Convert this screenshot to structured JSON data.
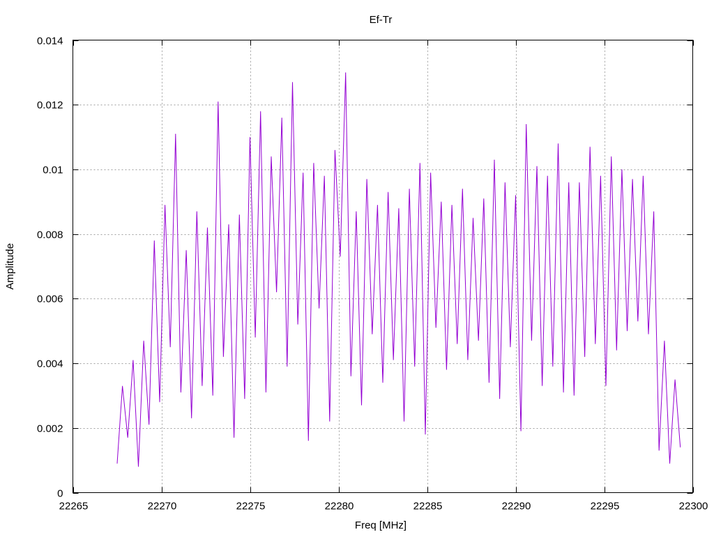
{
  "chart_data": {
    "type": "line",
    "title": "Ef-Tr",
    "xlabel": "Freq [MHz]",
    "ylabel": "Amplitude",
    "xlim": [
      22265,
      22300
    ],
    "ylim": [
      0,
      0.014
    ],
    "xticks": [
      22265,
      22270,
      22275,
      22280,
      22285,
      22290,
      22295,
      22300
    ],
    "xtick_labels": [
      "22265",
      "22270",
      "22275",
      "22280",
      "22285",
      "22290",
      "22295",
      "22300"
    ],
    "yticks": [
      0,
      0.002,
      0.004,
      0.006,
      0.008,
      0.01,
      0.012,
      0.014
    ],
    "ytick_labels": [
      "0",
      "0.002",
      "0.004",
      "0.006",
      "0.008",
      "0.01",
      "0.012",
      "0.014"
    ],
    "grid": true,
    "legend": "none",
    "series": [
      {
        "color": "#9400d3",
        "x": [
          22267.5,
          22267.8,
          22268.1,
          22268.4,
          22268.7,
          22269.0,
          22269.3,
          22269.6,
          22269.9,
          22270.2,
          22270.5,
          22270.8,
          22271.1,
          22271.4,
          22271.7,
          22272.0,
          22272.3,
          22272.6,
          22272.9,
          22273.2,
          22273.5,
          22273.8,
          22274.1,
          22274.4,
          22274.7,
          22275.0,
          22275.3,
          22275.6,
          22275.9,
          22276.2,
          22276.5,
          22276.8,
          22277.1,
          22277.4,
          22277.7,
          22278.0,
          22278.3,
          22278.6,
          22278.9,
          22279.2,
          22279.5,
          22279.8,
          22280.1,
          22280.4,
          22280.7,
          22281.0,
          22281.3,
          22281.6,
          22281.9,
          22282.2,
          22282.5,
          22282.8,
          22283.1,
          22283.4,
          22283.7,
          22284.0,
          22284.3,
          22284.6,
          22284.9,
          22285.2,
          22285.5,
          22285.8,
          22286.1,
          22286.4,
          22286.7,
          22287.0,
          22287.3,
          22287.6,
          22287.9,
          22288.2,
          22288.5,
          22288.8,
          22289.1,
          22289.4,
          22289.7,
          22290.0,
          22290.3,
          22290.6,
          22290.9,
          22291.2,
          22291.5,
          22291.8,
          22292.1,
          22292.4,
          22292.7,
          22293.0,
          22293.3,
          22293.6,
          22293.9,
          22294.2,
          22294.5,
          22294.8,
          22295.1,
          22295.4,
          22295.7,
          22296.0,
          22296.3,
          22296.6,
          22296.9,
          22297.2,
          22297.5,
          22297.8,
          22298.1,
          22298.4,
          22298.7,
          22299.0,
          22299.3
        ],
        "y": [
          0.0009,
          0.0033,
          0.0017,
          0.0041,
          0.0008,
          0.0047,
          0.0021,
          0.0078,
          0.0028,
          0.0089,
          0.0045,
          0.0111,
          0.0031,
          0.0075,
          0.0023,
          0.0087,
          0.0033,
          0.0082,
          0.003,
          0.0121,
          0.0042,
          0.0083,
          0.0017,
          0.0086,
          0.0029,
          0.011,
          0.0048,
          0.0118,
          0.0031,
          0.0104,
          0.0062,
          0.0116,
          0.0039,
          0.0127,
          0.0052,
          0.0099,
          0.0016,
          0.0102,
          0.0057,
          0.0098,
          0.0022,
          0.0106,
          0.0073,
          0.013,
          0.0036,
          0.0087,
          0.0027,
          0.0097,
          0.0049,
          0.0089,
          0.0034,
          0.0093,
          0.0041,
          0.0088,
          0.0022,
          0.0094,
          0.0039,
          0.0102,
          0.0018,
          0.0099,
          0.0051,
          0.009,
          0.0038,
          0.0089,
          0.0046,
          0.0094,
          0.0041,
          0.0085,
          0.0047,
          0.0091,
          0.0034,
          0.0103,
          0.0029,
          0.0096,
          0.0045,
          0.0092,
          0.0019,
          0.0114,
          0.0047,
          0.0101,
          0.0033,
          0.0098,
          0.0039,
          0.0108,
          0.0031,
          0.0096,
          0.003,
          0.0096,
          0.0042,
          0.0107,
          0.0046,
          0.0098,
          0.0033,
          0.0104,
          0.0044,
          0.01,
          0.005,
          0.0097,
          0.0053,
          0.0098,
          0.0049,
          0.0087,
          0.0013,
          0.0047,
          0.0009,
          0.0035,
          0.0014
        ]
      }
    ]
  }
}
